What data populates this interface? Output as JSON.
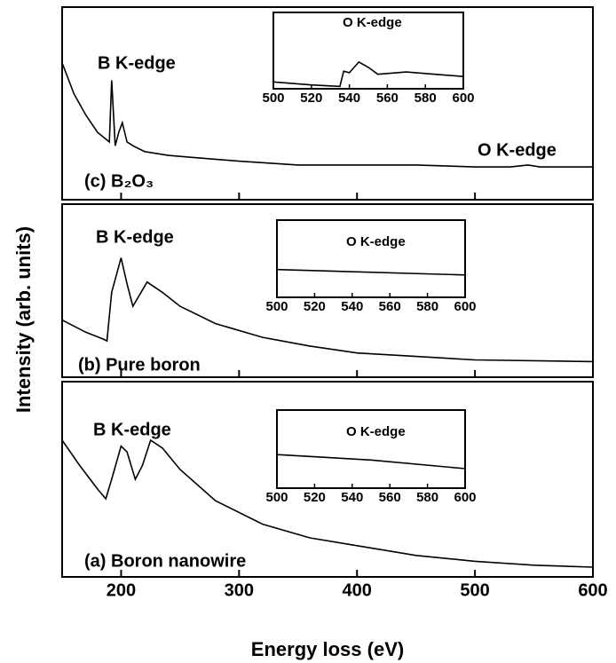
{
  "chart_data": [
    {
      "type": "line",
      "label": "(c) B₂O₃",
      "annotations": [
        "B K-edge",
        "O K-edge"
      ],
      "x": [
        150,
        160,
        170,
        180,
        188,
        190,
        192,
        195,
        198,
        201,
        205,
        210,
        220,
        240,
        260,
        300,
        350,
        400,
        450,
        500,
        530,
        545,
        555,
        600
      ],
      "values": [
        71,
        55,
        44,
        35,
        31,
        30,
        62,
        28,
        35,
        40,
        30,
        28,
        25,
        23,
        22,
        20,
        18,
        18,
        18,
        17,
        17,
        18,
        17,
        17
      ],
      "xlim": [
        150,
        600
      ],
      "ylim": [
        0,
        100
      ],
      "color": "#000000",
      "inset": {
        "type": "line",
        "title": "O K-edge",
        "x": [
          500,
          520,
          535,
          537,
          540,
          545,
          550,
          555,
          570,
          585,
          600
        ],
        "values": [
          9,
          5,
          3,
          23,
          21,
          35,
          28,
          19,
          22,
          19,
          16
        ],
        "xlim": [
          500,
          600
        ],
        "ylim": [
          0,
          100
        ],
        "xticks": [
          500,
          520,
          540,
          560,
          580,
          600
        ]
      }
    },
    {
      "type": "line",
      "label": "(b) Pure boron",
      "annotations": [
        "B K-edge"
      ],
      "y_label": "Intensity (arb. units)",
      "x": [
        150,
        170,
        185,
        188,
        192,
        200,
        205,
        210,
        222,
        235,
        250,
        280,
        320,
        360,
        400,
        450,
        500,
        600
      ],
      "values": [
        33,
        26,
        22,
        21,
        49,
        69,
        54,
        41,
        55,
        49,
        41,
        31,
        23,
        18,
        14,
        12,
        10,
        9
      ],
      "xlim": [
        150,
        600
      ],
      "ylim": [
        0,
        100
      ],
      "color": "#000000",
      "inset": {
        "type": "line",
        "title": "O K-edge",
        "x": [
          500,
          600
        ],
        "values": [
          36,
          29
        ],
        "xlim": [
          500,
          600
        ],
        "ylim": [
          0,
          100
        ],
        "xticks": [
          500,
          520,
          540,
          560,
          580,
          600
        ]
      }
    },
    {
      "type": "line",
      "label": "(a) Boron nanowire",
      "annotations": [
        "B K-edge"
      ],
      "x_label": "Energy loss (eV)",
      "x": [
        150,
        165,
        180,
        187,
        192,
        200,
        205,
        212,
        218,
        225,
        235,
        250,
        280,
        320,
        360,
        400,
        450,
        500,
        550,
        600
      ],
      "values": [
        70,
        57,
        45,
        40,
        50,
        67,
        64,
        50,
        57,
        70,
        66,
        55,
        39,
        27,
        20,
        16,
        11,
        8,
        6,
        5
      ],
      "xlim": [
        150,
        600
      ],
      "ylim": [
        0,
        100
      ],
      "xticks": [
        200,
        300,
        400,
        500,
        600
      ],
      "color": "#000000",
      "inset": {
        "type": "line",
        "title": "O K-edge",
        "x": [
          500,
          550,
          600
        ],
        "values": [
          43,
          36,
          25
        ],
        "xlim": [
          500,
          600
        ],
        "ylim": [
          0,
          100
        ],
        "xticks": [
          500,
          520,
          540,
          560,
          580,
          600
        ]
      }
    }
  ]
}
